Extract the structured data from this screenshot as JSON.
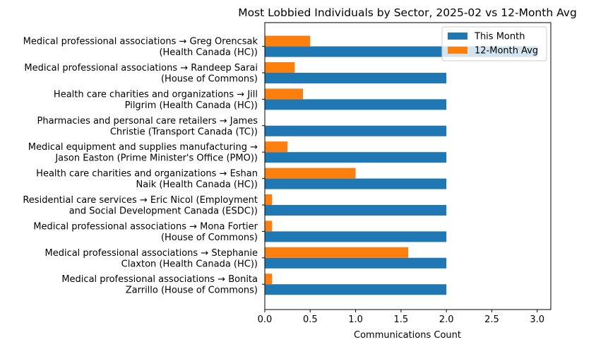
{
  "chart_data": {
    "type": "bar",
    "orientation": "horizontal",
    "title": "Most Lobbied Individuals by Sector, 2025-02 vs 12-Month Avg",
    "xlabel": "Communications Count",
    "ylabel": "",
    "xlim": [
      0,
      3.15
    ],
    "xticks": [
      "0.0",
      "0.5",
      "1.0",
      "1.5",
      "2.0",
      "2.5",
      "3.0"
    ],
    "grid": false,
    "legend_position": "top-right",
    "categories": [
      [
        "Medical professional associations → Greg Orencsak",
        "(Health Canada (HC))"
      ],
      [
        "Medical professional associations → Randeep Sarai",
        "(House of Commons)"
      ],
      [
        "Health care charities and organizations → Jill",
        "Pilgrim (Health Canada (HC))"
      ],
      [
        "Pharmacies and personal care retailers → James",
        "Christie (Transport Canada (TC))"
      ],
      [
        "Medical equipment and supplies manufacturing →",
        "Jason Easton (Prime Minister's Office (PMO))"
      ],
      [
        "Health care charities and organizations → Eshan",
        "Naik (Health Canada (HC))"
      ],
      [
        "Residential care services → Eric Nicol (Employment",
        "and Social Development Canada (ESDC))"
      ],
      [
        "Medical professional associations → Mona Fortier",
        "(House of Commons)"
      ],
      [
        "Medical professional associations → Stephanie",
        "Claxton (Health Canada (HC))"
      ],
      [
        "Medical professional associations → Bonita",
        "Zarrillo (House of Commons)"
      ]
    ],
    "series": [
      {
        "name": "This Month",
        "color": "#1f77b4",
        "values": [
          3,
          2,
          2,
          2,
          2,
          2,
          2,
          2,
          2,
          2
        ]
      },
      {
        "name": "12-Month Avg",
        "color": "#ff7f0e",
        "values": [
          0.5,
          0.33,
          0.42,
          0,
          0.25,
          1.0,
          0.08,
          0.08,
          1.58,
          0.08
        ]
      }
    ]
  }
}
